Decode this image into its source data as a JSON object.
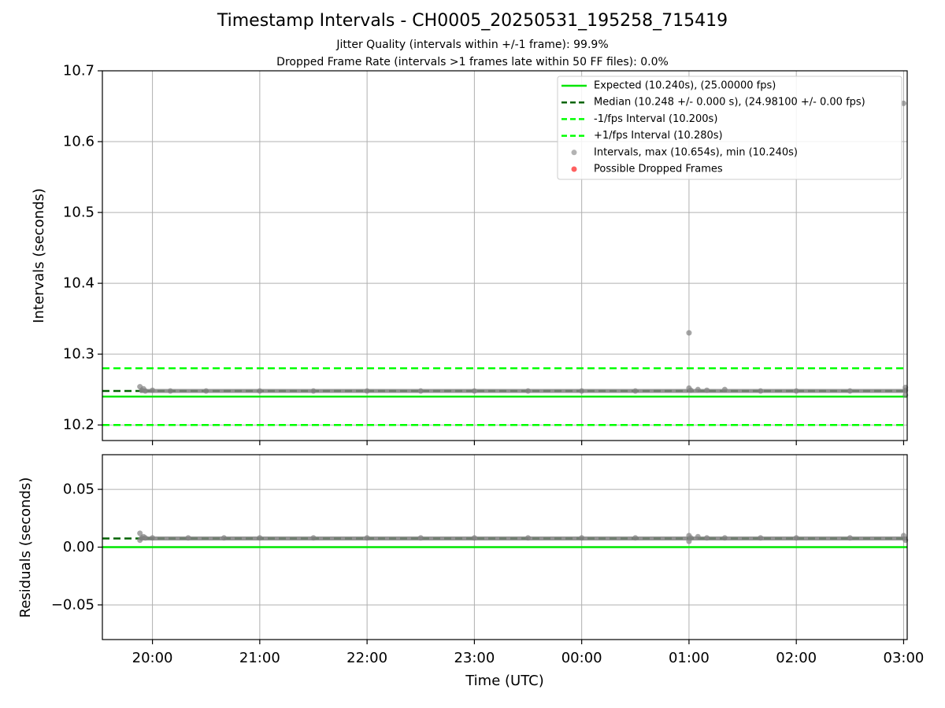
{
  "title": "Timestamp Intervals - CH0005_20250531_195258_715419",
  "subtitle_1": "Jitter Quality (intervals within +/-1 frame): 99.9%",
  "subtitle_2": "Dropped Frame Rate (intervals >1 frames late within 50 FF files): 0.0%",
  "colors": {
    "expected": "#00e600",
    "median": "#006400",
    "interval_bounds": "#00ff00",
    "points": "#808080",
    "dropped": "#ff6060",
    "grid": "#b0b0b0"
  },
  "chart_data": [
    {
      "type": "scatter",
      "panel": "intervals",
      "ylabel": "Intervals (seconds)",
      "ylim": [
        10.178,
        10.7
      ],
      "yticks": [
        "10.2",
        "10.3",
        "10.4",
        "10.5",
        "10.6",
        "10.7"
      ],
      "ytick_values": [
        10.2,
        10.3,
        10.4,
        10.5,
        10.6,
        10.7
      ],
      "xlim": [
        "19:32",
        "03:02"
      ],
      "grid": true,
      "legend_position": "upper right",
      "hlines": [
        {
          "name": "Expected (10.240s), (25.00000 fps)",
          "y": 10.24,
          "style": "solid"
        },
        {
          "name": "Median (10.248 +/- 0.000 s), (24.98100 +/- 0.00 fps)",
          "y": 10.248,
          "style": "dashed"
        },
        {
          "name": "-1/fps Interval (10.200s)",
          "y": 10.2,
          "style": "dashed"
        },
        {
          "name": "+1/fps Interval (10.280s)",
          "y": 10.28,
          "style": "dashed"
        }
      ],
      "series": [
        {
          "name": "Intervals, max (10.654s), min (10.240s)",
          "x": [
            "19:53",
            "19:54",
            "19:55",
            "19:56",
            "20:00",
            "20:10",
            "20:30",
            "21:00",
            "21:30",
            "22:00",
            "22:30",
            "23:00",
            "23:30",
            "00:00",
            "00:30",
            "01:00",
            "01:00",
            "01:01",
            "01:05",
            "01:10",
            "01:20",
            "01:40",
            "02:00",
            "02:30",
            "03:00",
            "03:01",
            "03:01",
            "03:01"
          ],
          "y": [
            10.254,
            10.249,
            10.251,
            10.248,
            10.249,
            10.248,
            10.248,
            10.248,
            10.248,
            10.248,
            10.248,
            10.248,
            10.248,
            10.248,
            10.248,
            10.33,
            10.252,
            10.249,
            10.25,
            10.249,
            10.25,
            10.248,
            10.248,
            10.248,
            10.654,
            10.242,
            10.253,
            10.249
          ]
        },
        {
          "name": "Possible Dropped Frames",
          "x": [],
          "y": []
        }
      ]
    },
    {
      "type": "scatter",
      "panel": "residuals",
      "ylabel": "Residuals (seconds)",
      "xlabel": "Time (UTC)",
      "ylim": [
        -0.08,
        0.08
      ],
      "yticks": [
        "0.05",
        "0.00",
        "−0.05"
      ],
      "ytick_values": [
        0.05,
        0.0,
        -0.05
      ],
      "xlim": [
        "19:32",
        "03:02"
      ],
      "categories": [
        "20:00",
        "21:00",
        "22:00",
        "23:00",
        "00:00",
        "01:00",
        "02:00",
        "03:00"
      ],
      "grid": true,
      "hlines": [
        {
          "name": "Expected",
          "y": 0.0,
          "style": "solid"
        },
        {
          "name": "Median",
          "y": 0.0075,
          "style": "dashed"
        }
      ],
      "series": [
        {
          "name": "Residuals",
          "x": [
            "19:53",
            "19:53",
            "19:54",
            "19:55",
            "19:56",
            "20:00",
            "20:20",
            "20:40",
            "21:00",
            "21:30",
            "22:00",
            "22:30",
            "23:00",
            "23:30",
            "00:00",
            "00:30",
            "01:00",
            "01:00",
            "01:01",
            "01:05",
            "01:10",
            "01:20",
            "01:40",
            "02:00",
            "02:30",
            "03:00",
            "03:01"
          ],
          "y": [
            0.012,
            0.006,
            0.008,
            0.009,
            0.008,
            0.008,
            0.008,
            0.008,
            0.008,
            0.008,
            0.008,
            0.008,
            0.008,
            0.008,
            0.008,
            0.008,
            0.01,
            0.005,
            0.008,
            0.009,
            0.008,
            0.008,
            0.008,
            0.008,
            0.008,
            0.01,
            0.006
          ]
        }
      ]
    }
  ]
}
